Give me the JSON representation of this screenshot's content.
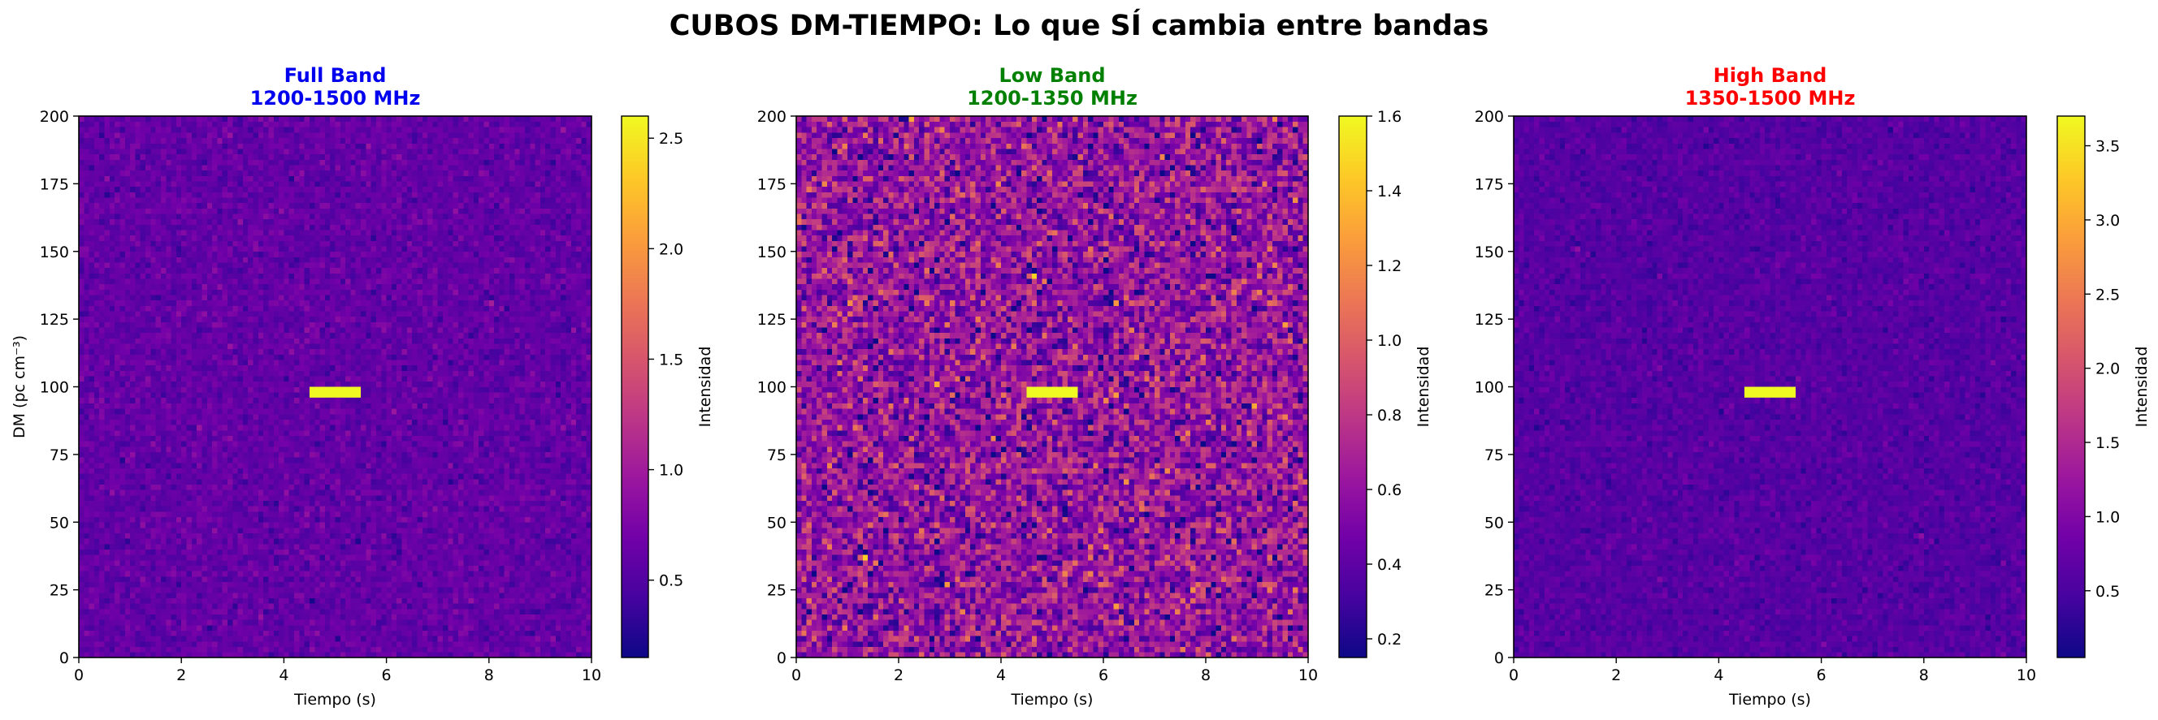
{
  "figure": {
    "title": "CUBOS DM-TIEMPO: Lo que SÍ cambia entre bandas"
  },
  "colormap": [
    "#0d0887",
    "#46039f",
    "#7201a8",
    "#9c179e",
    "#bd3786",
    "#d8576b",
    "#ed7953",
    "#fb9f3a",
    "#fdca26",
    "#f0f921"
  ],
  "chart_data": [
    {
      "type": "heatmap",
      "title_line1": "Full Band",
      "title_line2": "1200-1500 MHz",
      "title_color": "#0000ee",
      "xlabel": "Tiempo (s)",
      "ylabel": "DM (pc cm⁻³)",
      "colorbar_label": "Intensidad",
      "xlim": [
        0,
        10
      ],
      "ylim": [
        0,
        200
      ],
      "x_ticks": [
        0,
        2,
        4,
        6,
        8,
        10
      ],
      "y_ticks": [
        0,
        25,
        50,
        75,
        100,
        125,
        150,
        175,
        200
      ],
      "colorbar_range": [
        0.15,
        2.6
      ],
      "colorbar_ticks": [
        "0.5",
        "1.0",
        "1.5",
        "2.0",
        "2.5"
      ],
      "background_level": 0.6,
      "noise_amplitude": 0.1,
      "pulse": {
        "time_range": [
          4.5,
          5.5
        ],
        "dm_range": [
          96,
          100
        ],
        "intensity": 2.6
      }
    },
    {
      "type": "heatmap",
      "title_line1": "Low Band",
      "title_line2": "1200-1350 MHz",
      "title_color": "#008000",
      "xlabel": "Tiempo (s)",
      "ylabel": "",
      "colorbar_label": "Intensidad",
      "xlim": [
        0,
        10
      ],
      "ylim": [
        0,
        200
      ],
      "x_ticks": [
        0,
        2,
        4,
        6,
        8,
        10
      ],
      "y_ticks": [
        0,
        25,
        50,
        75,
        100,
        125,
        150,
        175,
        200
      ],
      "colorbar_range": [
        0.15,
        1.6
      ],
      "colorbar_ticks": [
        "0.2",
        "0.4",
        "0.6",
        "0.8",
        "1.0",
        "1.2",
        "1.4",
        "1.6"
      ],
      "background_level": 0.6,
      "noise_amplitude": 0.2,
      "pulse": {
        "time_range": [
          4.5,
          5.5
        ],
        "dm_range": [
          96,
          100
        ],
        "intensity": 1.6
      }
    },
    {
      "type": "heatmap",
      "title_line1": "High Band",
      "title_line2": "1350-1500 MHz",
      "title_color": "#ff0000",
      "xlabel": "Tiempo (s)",
      "ylabel": "",
      "colorbar_label": "Intensidad",
      "xlim": [
        0,
        10
      ],
      "ylim": [
        0,
        200
      ],
      "x_ticks": [
        0,
        2,
        4,
        6,
        8,
        10
      ],
      "y_ticks": [
        0,
        25,
        50,
        75,
        100,
        125,
        150,
        175,
        200
      ],
      "colorbar_range": [
        0.05,
        3.7
      ],
      "colorbar_ticks": [
        "0.5",
        "1.0",
        "1.5",
        "2.0",
        "2.5",
        "3.0",
        "3.5"
      ],
      "background_level": 0.6,
      "noise_amplitude": 0.12,
      "pulse": {
        "time_range": [
          4.5,
          5.5
        ],
        "dm_range": [
          96,
          100
        ],
        "intensity": 3.7
      }
    }
  ]
}
